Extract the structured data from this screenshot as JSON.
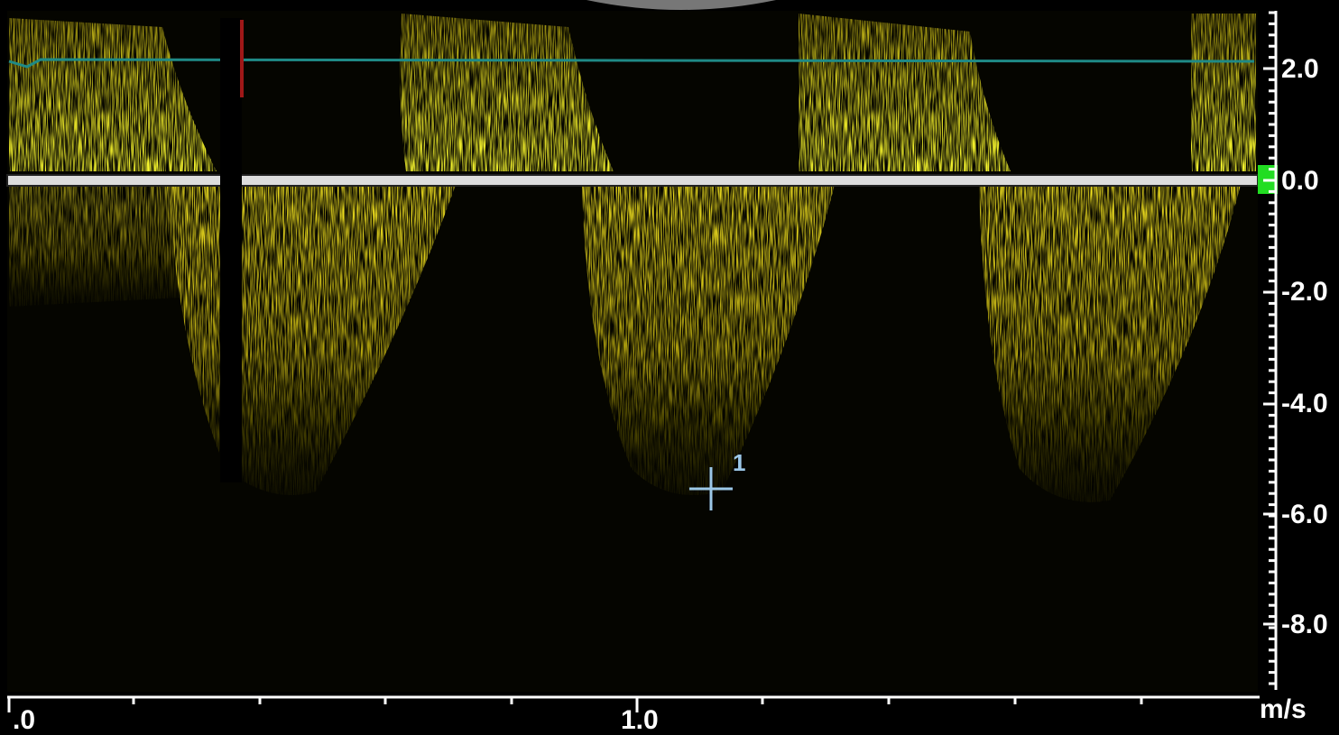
{
  "velocity_axis": {
    "ticks": [
      "2.0",
      "0.0",
      "-2.0",
      "-4.0",
      "-6.0",
      "-8.0"
    ],
    "unit": "m/s"
  },
  "time_axis": {
    "ticks": [
      ".0",
      "1.0"
    ]
  },
  "marker": {
    "label": "1"
  }
}
